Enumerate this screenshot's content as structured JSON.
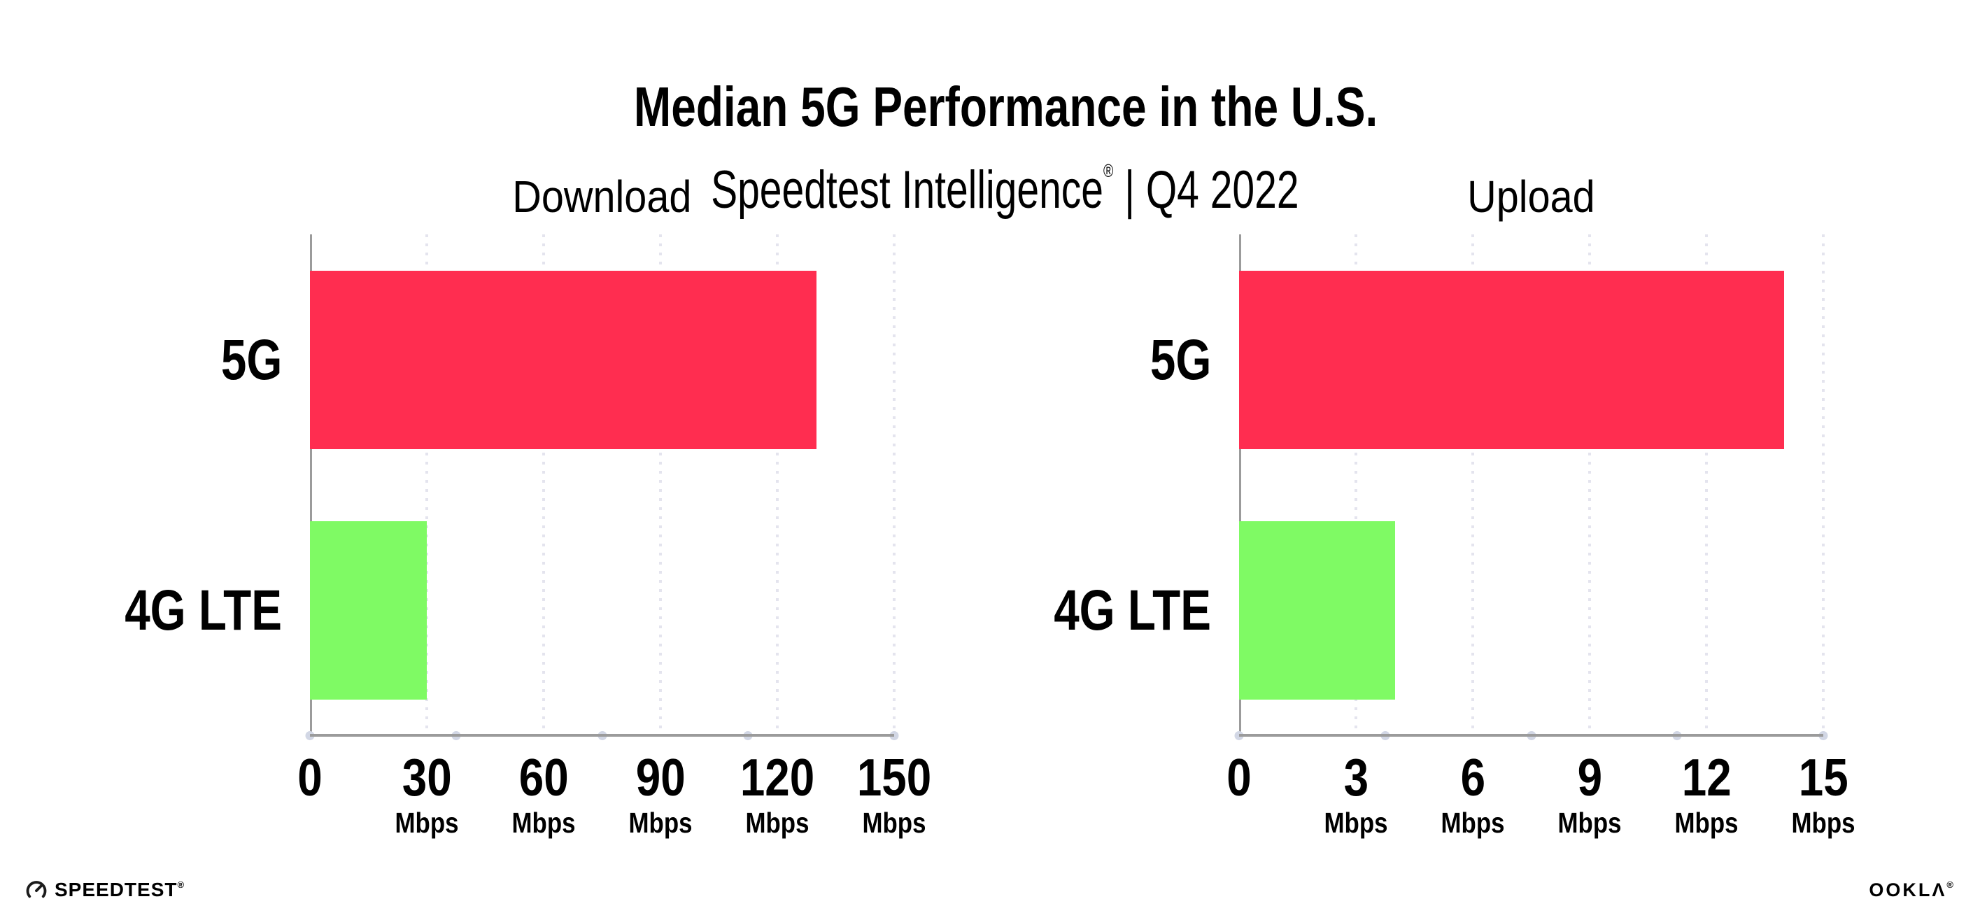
{
  "header": {
    "title": "Median 5G Performance in the U.S.",
    "subtitle_brand": "Speedtest Intelligence",
    "subtitle_reg": "®",
    "subtitle_rest": " | Q4 2022"
  },
  "colors": {
    "bar_5g": "#FF2D50",
    "bar_4g": "#7FFA64",
    "gridline": "#E4E4EE",
    "axis_line": "#9B9B9B",
    "axis_dot": "#D2D7E5",
    "text": "#000000"
  },
  "chart_data": [
    {
      "type": "bar",
      "orientation": "horizontal",
      "title": "Download",
      "categories": [
        "5G",
        "4G LTE"
      ],
      "values": [
        130,
        30
      ],
      "unit": "Mbps",
      "xlabel": "",
      "ylabel": "",
      "xlim": [
        0,
        150
      ],
      "xticks": [
        0,
        30,
        60,
        90,
        120,
        150
      ],
      "grid": "vertical-dotted",
      "legend": "none",
      "bar_colors": [
        "#FF2D50",
        "#7FFA64"
      ]
    },
    {
      "type": "bar",
      "orientation": "horizontal",
      "title": "Upload",
      "categories": [
        "5G",
        "4G LTE"
      ],
      "values": [
        14,
        4
      ],
      "unit": "Mbps",
      "xlabel": "",
      "ylabel": "",
      "xlim": [
        0,
        15
      ],
      "xticks": [
        0,
        3,
        6,
        9,
        12,
        15
      ],
      "grid": "vertical-dotted",
      "legend": "none",
      "bar_colors": [
        "#FF2D50",
        "#7FFA64"
      ]
    }
  ],
  "footer": {
    "speedtest_label": "SPEEDTEST",
    "speedtest_reg": "®",
    "ookla_label": "OOKLΛ",
    "ookla_reg": "®"
  }
}
